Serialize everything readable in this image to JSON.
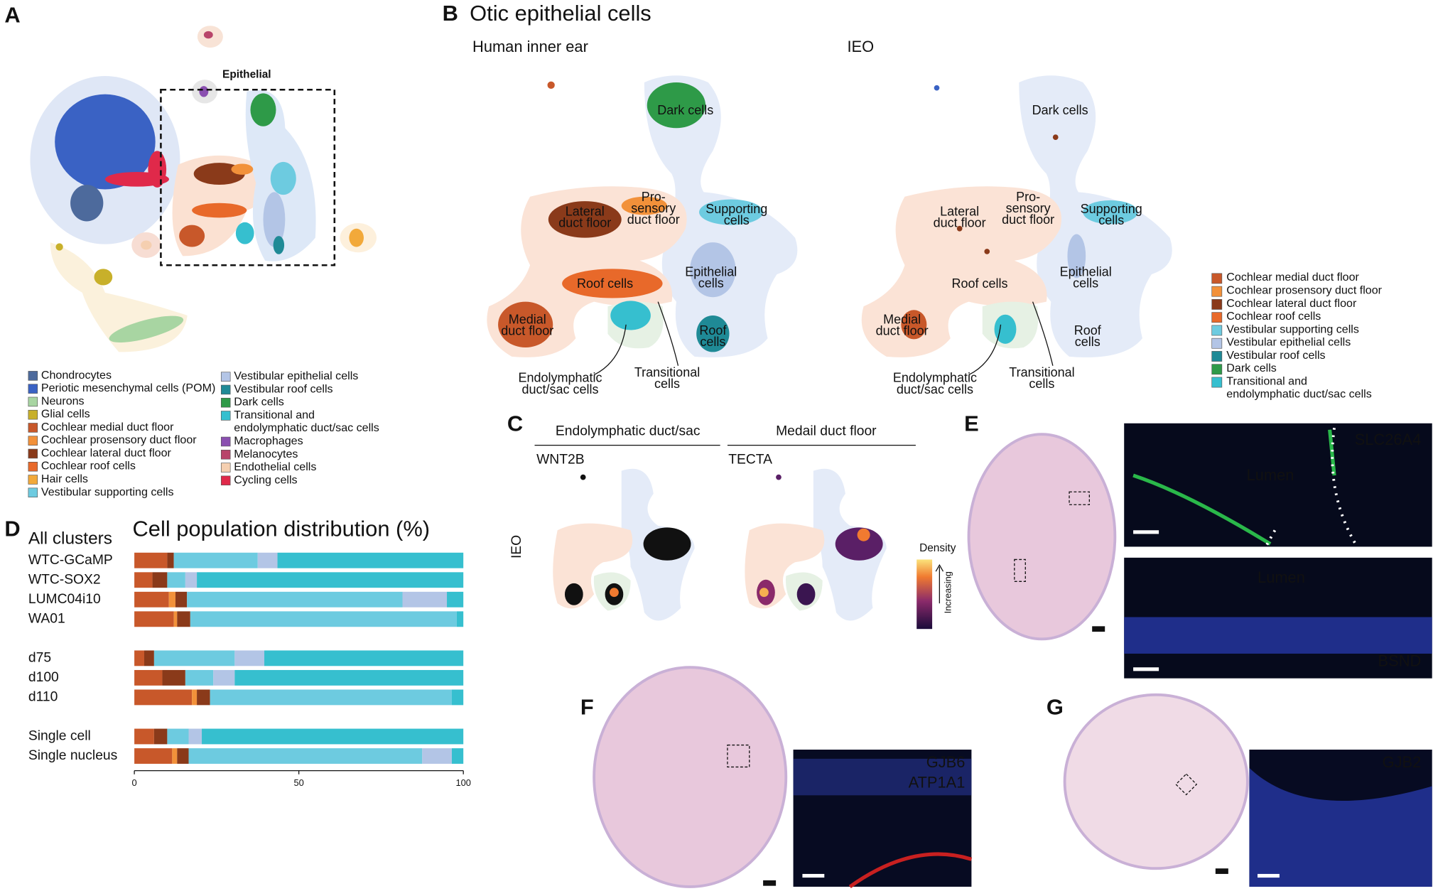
{
  "figure": {
    "panel_a": {
      "label": "A",
      "box_label": "Epithelial",
      "legend": [
        {
          "lines": [
            "Chondrocytes"
          ],
          "color": "#4d6a9c"
        },
        {
          "lines": [
            "Periotic mesenchymal cells (POM)"
          ],
          "color": "#3a62c4"
        },
        {
          "lines": [
            "Neurons"
          ],
          "color": "#a8d5a2"
        },
        {
          "lines": [
            "Glial cells"
          ],
          "color": "#c8b02a"
        },
        {
          "lines": [
            "Cochlear medial duct floor"
          ],
          "color": "#c8582a"
        },
        {
          "lines": [
            "Cochlear prosensory duct floor"
          ],
          "color": "#f2913a"
        },
        {
          "lines": [
            "Cochlear lateral duct floor"
          ],
          "color": "#8a3a1a"
        },
        {
          "lines": [
            "Cochlear roof cells"
          ],
          "color": "#e8692a"
        },
        {
          "lines": [
            "Hair cells"
          ],
          "color": "#f2a93a"
        },
        {
          "lines": [
            "Vestibular supporting cells"
          ],
          "color": "#6dcbe0"
        },
        {
          "lines": [
            "Vestibular epithelial cells"
          ],
          "color": "#b3c5e6"
        },
        {
          "lines": [
            "Vestibular roof cells"
          ],
          "color": "#1f8a96"
        },
        {
          "lines": [
            "Dark cells"
          ],
          "color": "#2e9a48"
        },
        {
          "lines": [
            "Transitional and",
            "endolymphatic duct/sac cells"
          ],
          "color": "#36bfcf"
        },
        {
          "lines": [
            "Macrophages"
          ],
          "color": "#8a4fb0"
        },
        {
          "lines": [
            "Melanocytes"
          ],
          "color": "#b8456a"
        },
        {
          "lines": [
            "Endothelial cells"
          ],
          "color": "#f5cfb0"
        },
        {
          "lines": [
            "Cycling cells"
          ],
          "color": "#e0294a"
        }
      ]
    },
    "panel_b": {
      "label": "B",
      "title": "Otic epithelial cells",
      "umaps": [
        {
          "title": "Human inner ear",
          "clusters": [
            {
              "lines": [
                "Dark cells"
              ]
            },
            {
              "lines": [
                "Lateral",
                "duct floor"
              ]
            },
            {
              "lines": [
                "Pro-",
                "sensory",
                "duct floor"
              ]
            },
            {
              "lines": [
                "Supporting",
                "cells"
              ]
            },
            {
              "lines": [
                "Epithelial",
                "cells"
              ]
            },
            {
              "lines": [
                "Roof cells"
              ]
            },
            {
              "lines": [
                "Medial",
                "duct floor"
              ]
            },
            {
              "lines": [
                "Roof",
                "cells"
              ]
            },
            {
              "lines": [
                "Endolymphatic",
                "duct/sac cells"
              ]
            },
            {
              "lines": [
                "Transitional",
                "cells"
              ]
            }
          ]
        },
        {
          "title": "IEO",
          "clusters": [
            {
              "lines": [
                "Dark cells"
              ]
            },
            {
              "lines": [
                "Lateral",
                "duct floor"
              ]
            },
            {
              "lines": [
                "Pro-",
                "sensory",
                "duct floor"
              ]
            },
            {
              "lines": [
                "Supporting",
                "cells"
              ]
            },
            {
              "lines": [
                "Epithelial",
                "cells"
              ]
            },
            {
              "lines": [
                "Roof cells"
              ]
            },
            {
              "lines": [
                "Medial",
                "duct floor"
              ]
            },
            {
              "lines": [
                "Roof",
                "cells"
              ]
            },
            {
              "lines": [
                "Endolymphatic",
                "duct/sac cells"
              ]
            },
            {
              "lines": [
                "Transitional",
                "cells"
              ]
            }
          ]
        }
      ],
      "legend": [
        {
          "lines": [
            "Cochlear medial duct floor"
          ],
          "color": "#c8582a"
        },
        {
          "lines": [
            "Cochlear prosensory duct floor"
          ],
          "color": "#f2913a"
        },
        {
          "lines": [
            "Cochlear lateral duct floor"
          ],
          "color": "#8a3a1a"
        },
        {
          "lines": [
            "Cochlear roof cells"
          ],
          "color": "#e8692a"
        },
        {
          "lines": [
            "Vestibular supporting cells"
          ],
          "color": "#6dcbe0"
        },
        {
          "lines": [
            "Vestibular epithelial cells"
          ],
          "color": "#b3c5e6"
        },
        {
          "lines": [
            "Vestibular roof cells"
          ],
          "color": "#1f8a96"
        },
        {
          "lines": [
            "Dark cells"
          ],
          "color": "#2e9a48"
        },
        {
          "lines": [
            "Transitional and",
            "endolymphatic duct/sac cells"
          ],
          "color": "#36bfcf"
        }
      ]
    },
    "panel_c": {
      "label": "C",
      "groups": [
        "Endolymphatic duct/sac",
        "Medail duct floor"
      ],
      "genes": [
        "WNT2B",
        "TECTA"
      ],
      "row_label": "IEO",
      "colorbar_title": "Density",
      "colorbar_note": "Increasing"
    },
    "panel_e": {
      "label": "E",
      "top_marker": "SLC26A4",
      "top_lumen": "Lumen",
      "bottom_lumen": "Lumen",
      "bottom_marker": "BSND"
    },
    "panel_f": {
      "label": "F",
      "markers": [
        "GJB6",
        "ATP1A1"
      ]
    },
    "panel_g": {
      "label": "G",
      "marker": "GJB2"
    },
    "panel_d": {
      "label": "D",
      "row_title": "All clusters"
    }
  },
  "chart_data": {
    "type": "stacked-bar",
    "orientation": "horizontal",
    "title": "Cell population distribution (%)",
    "categories": [
      "WTC-GCaMP",
      "WTC-SOX2",
      "LUMC04i10",
      "WA01",
      null,
      "d75",
      "d100",
      "d110",
      null,
      "Single cell",
      "Single nucleus"
    ],
    "series": [
      {
        "color": "#c8582a",
        "values": [
          10,
          5.5,
          10.5,
          12,
          null,
          3,
          8.5,
          17.5,
          null,
          6,
          11.5
        ]
      },
      {
        "color": "#f2913a",
        "values": [
          0,
          0,
          2,
          1,
          null,
          0,
          0,
          1.5,
          null,
          0,
          1.5
        ]
      },
      {
        "color": "#8a3a1a",
        "values": [
          2,
          4.5,
          3.5,
          4,
          null,
          3,
          7,
          4,
          null,
          4,
          3.5
        ]
      },
      {
        "color": "#6dcbe0",
        "values": [
          25.5,
          5.5,
          65.5,
          81,
          null,
          24.5,
          8.5,
          73.5,
          null,
          6.5,
          71
        ]
      },
      {
        "color": "#b3c5e6",
        "values": [
          6,
          3.5,
          13.5,
          0,
          null,
          9,
          6.5,
          0,
          null,
          4,
          9
        ]
      },
      {
        "color": "#36bfcf",
        "values": [
          56.5,
          81,
          5,
          2,
          null,
          60.5,
          69.5,
          3.5,
          null,
          79.5,
          3.5
        ]
      }
    ],
    "xlim": [
      0,
      100
    ],
    "xticks": [
      0,
      50,
      100
    ]
  }
}
